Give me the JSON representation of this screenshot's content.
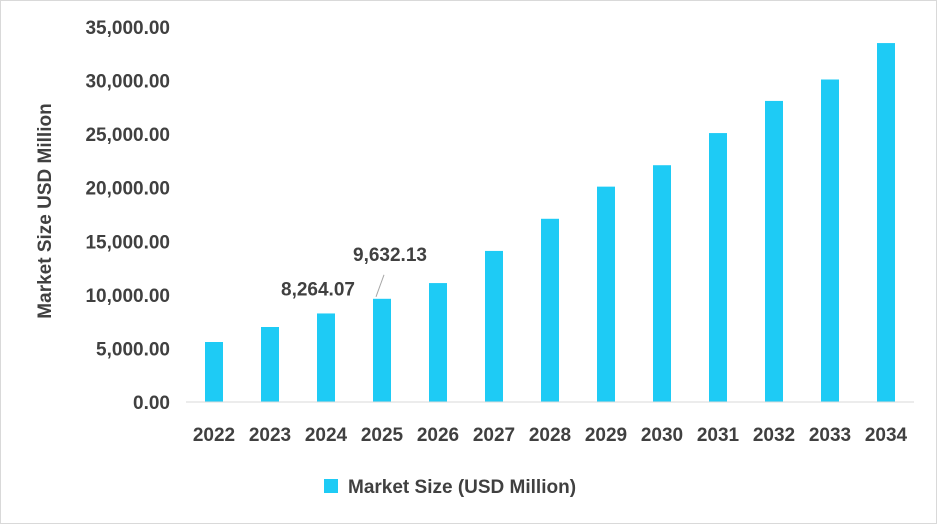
{
  "chart_data": {
    "type": "bar",
    "categories": [
      "2022",
      "2023",
      "2024",
      "2025",
      "2026",
      "2027",
      "2028",
      "2029",
      "2030",
      "2031",
      "2032",
      "2033",
      "2034"
    ],
    "series": [
      {
        "name": "Market Size (USD Million)",
        "color": "#1ECBF5",
        "values": [
          5600,
          7000,
          8264.07,
          9632.13,
          11100,
          14100,
          17100,
          20100,
          22100,
          25100,
          28100,
          30100,
          33500
        ]
      }
    ],
    "data_labels": [
      {
        "category": "2024",
        "text": "8,264.07"
      },
      {
        "category": "2025",
        "text": "9,632.13"
      }
    ],
    "ylabel": "Market Size USD Million",
    "xlabel": "",
    "ylim": [
      0,
      35000
    ],
    "yticks": [
      "0.00",
      "5,000.00",
      "10,000.00",
      "15,000.00",
      "20,000.00",
      "25,000.00",
      "30,000.00",
      "35,000.00"
    ],
    "grid": false,
    "legend": "bottom"
  }
}
